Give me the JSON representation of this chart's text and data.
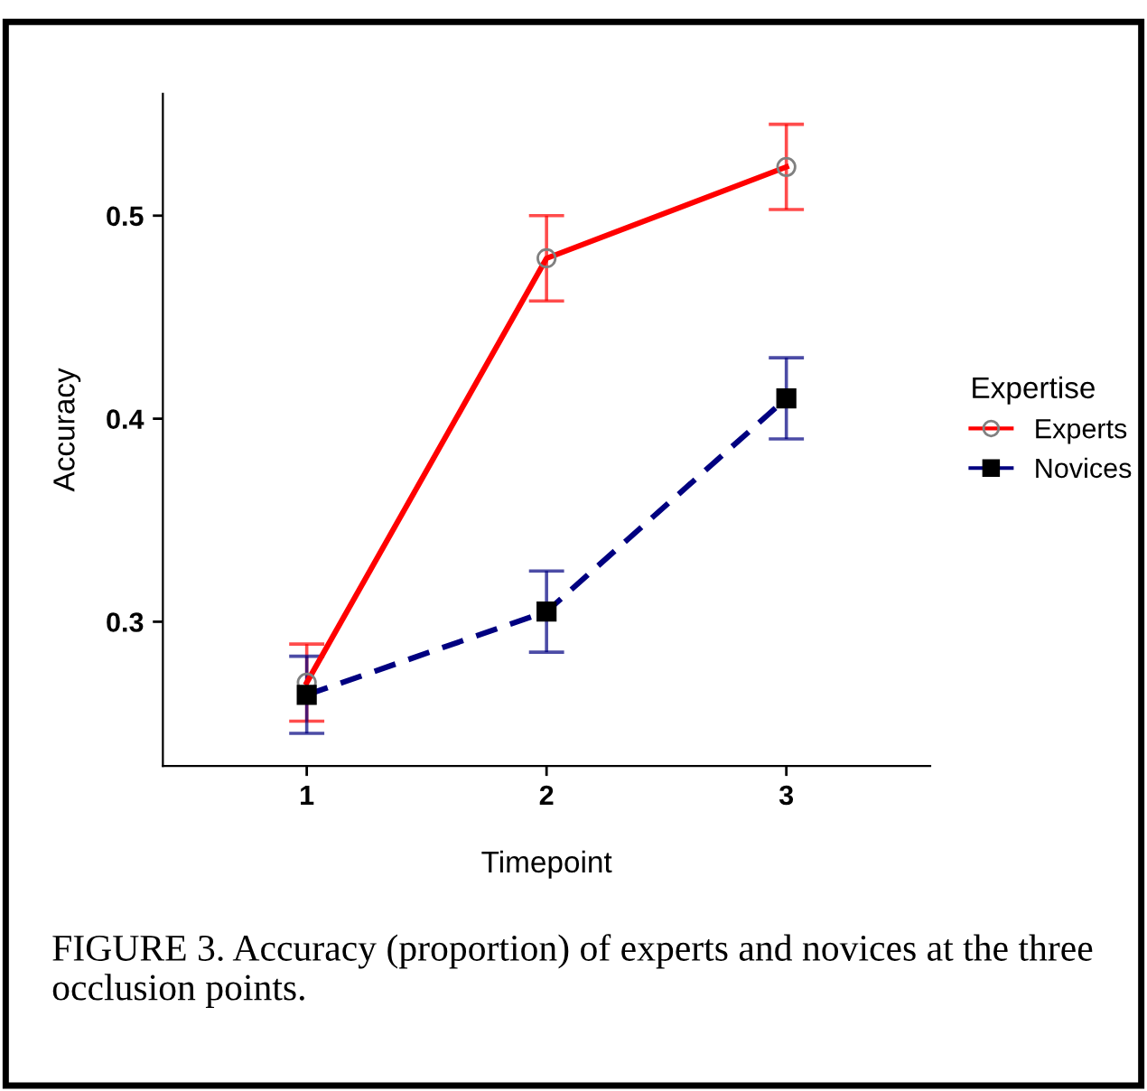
{
  "chart_data": {
    "type": "line",
    "xlabel": "Timepoint",
    "ylabel": "Accuracy",
    "legend_title": "Expertise",
    "x": [
      1,
      2,
      3
    ],
    "xlim": [
      0.4,
      3.6
    ],
    "xticks": [
      1,
      2,
      3
    ],
    "ylim": [
      0.229,
      0.56
    ],
    "yticks": [
      0.3,
      0.4,
      0.5
    ],
    "series": [
      {
        "name": "Experts",
        "color": "#ff0000",
        "values": [
          0.27,
          0.479,
          0.524
        ],
        "errors": [
          0.019,
          0.021,
          0.021
        ],
        "marker": "circle",
        "line_style": "solid"
      },
      {
        "name": "Novices",
        "color": "#000080",
        "values": [
          0.264,
          0.305,
          0.41
        ],
        "errors": [
          0.019,
          0.02,
          0.02
        ],
        "marker": "square",
        "line_style": "dashed"
      }
    ],
    "grid": false,
    "legend": "right",
    "annotations": [
      "FIGURE 3. Accuracy (proportion) of experts and novices at the three occlusion points."
    ]
  }
}
